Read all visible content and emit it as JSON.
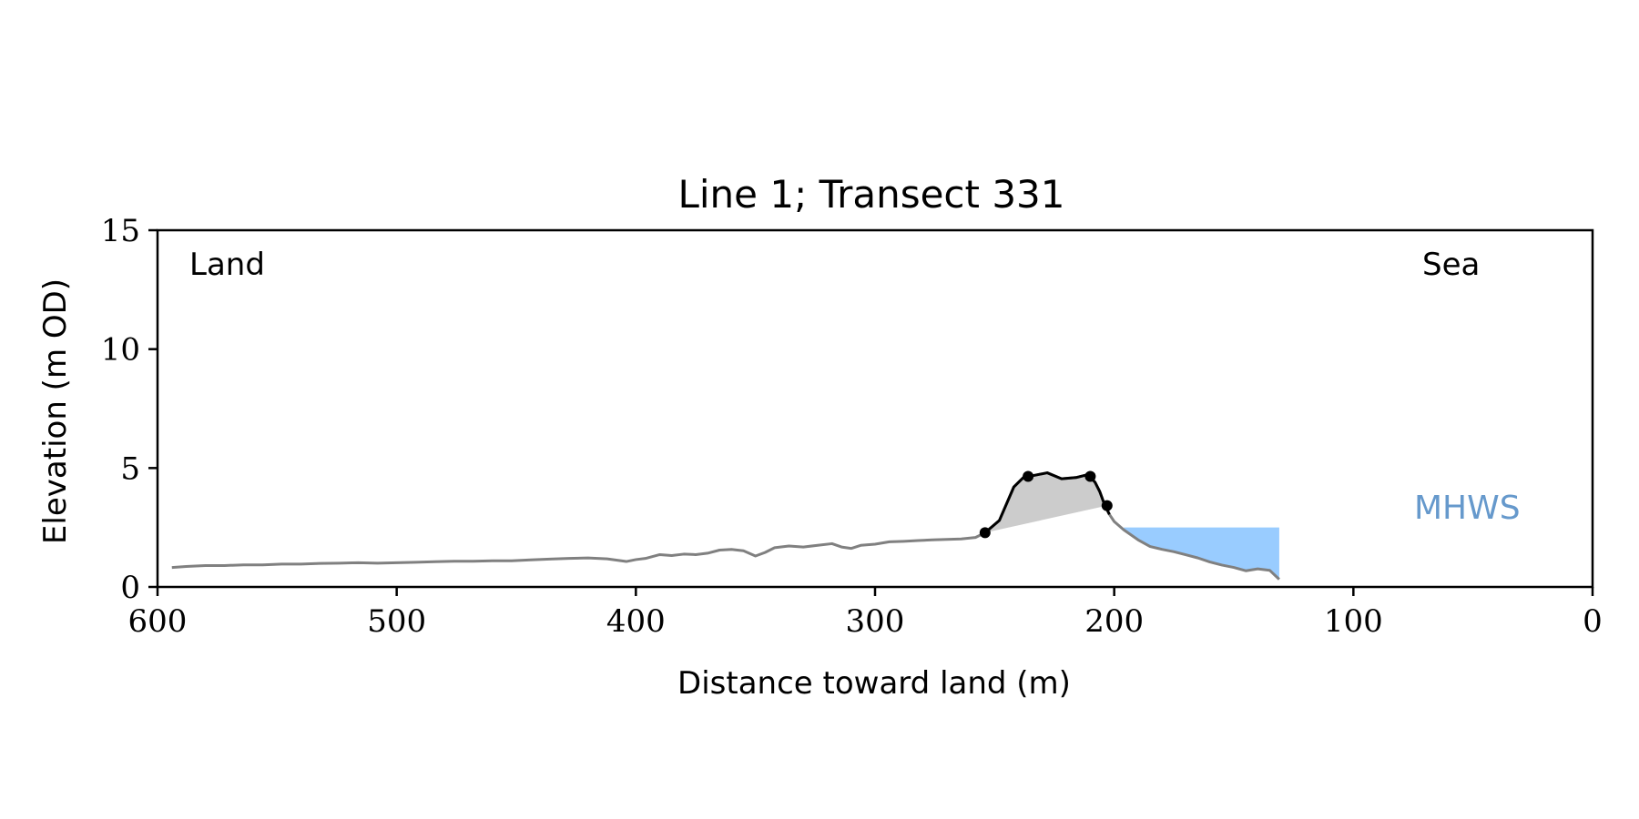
{
  "chart_data": {
    "type": "line",
    "title": "Line 1; Transect 331",
    "xlabel": "Distance toward land (m)",
    "ylabel": "Elevation (m OD)",
    "xlim": [
      600,
      0
    ],
    "ylim": [
      0,
      15
    ],
    "x_inverted": true,
    "xticks": [
      600,
      500,
      400,
      300,
      200,
      100,
      0
    ],
    "yticks": [
      0,
      5,
      10,
      15
    ],
    "grid": false,
    "annotations": {
      "land": "Land",
      "sea": "Sea",
      "mhws": "MHWS"
    },
    "colors": {
      "profile": "#808080",
      "dune": "#000000",
      "dune_fill": "#cccccc",
      "water_fill": "#99ccff",
      "mhws_text": "#6699cc"
    },
    "profile": {
      "x": [
        594,
        588,
        580,
        572,
        564,
        556,
        548,
        540,
        532,
        524,
        516,
        508,
        500,
        492,
        484,
        476,
        468,
        460,
        452,
        444,
        436,
        428,
        420,
        412,
        404,
        400,
        396,
        390,
        385,
        380,
        375,
        370,
        365,
        360,
        355,
        350,
        346,
        342,
        336,
        330,
        324,
        318,
        314,
        310,
        306,
        300,
        294,
        288,
        282,
        276,
        270,
        264,
        258,
        254,
        248,
        242,
        238,
        234,
        228,
        222,
        216,
        212,
        210,
        208,
        206,
        204,
        202,
        200,
        196,
        190,
        185,
        180,
        175,
        170,
        165,
        160,
        155,
        150,
        145,
        140,
        135,
        131
      ],
      "y": [
        0.82,
        0.86,
        0.9,
        0.9,
        0.93,
        0.93,
        0.96,
        0.96,
        0.99,
        1.0,
        1.02,
        1.0,
        1.02,
        1.04,
        1.06,
        1.08,
        1.08,
        1.1,
        1.1,
        1.14,
        1.17,
        1.2,
        1.22,
        1.18,
        1.07,
        1.15,
        1.2,
        1.36,
        1.32,
        1.38,
        1.36,
        1.42,
        1.55,
        1.58,
        1.52,
        1.3,
        1.45,
        1.65,
        1.72,
        1.68,
        1.75,
        1.82,
        1.68,
        1.62,
        1.75,
        1.8,
        1.9,
        1.92,
        1.95,
        1.98,
        2.0,
        2.02,
        2.08,
        2.28,
        2.8,
        4.2,
        4.6,
        4.68,
        4.8,
        4.55,
        4.6,
        4.7,
        4.62,
        4.4,
        4.0,
        3.45,
        3.05,
        2.75,
        2.4,
        1.98,
        1.7,
        1.58,
        1.48,
        1.35,
        1.22,
        1.05,
        0.92,
        0.82,
        0.68,
        0.76,
        0.7,
        0.32
      ]
    },
    "dune": {
      "x": [
        254,
        248,
        242,
        238,
        234,
        228,
        222,
        216,
        212,
        210,
        208,
        206,
        204,
        202
      ],
      "y": [
        2.28,
        2.8,
        4.2,
        4.6,
        4.68,
        4.8,
        4.55,
        4.6,
        4.7,
        4.62,
        4.4,
        4.0,
        3.45,
        3.05
      ]
    },
    "dune_points": {
      "x": [
        254,
        236,
        210,
        203
      ],
      "y": [
        2.28,
        4.65,
        4.65,
        3.42
      ]
    },
    "dune_toe_line": {
      "x": [
        254,
        203
      ],
      "y": [
        2.28,
        3.42
      ]
    },
    "mhws_level": 2.5,
    "water_extent": [
      196,
      131
    ]
  }
}
